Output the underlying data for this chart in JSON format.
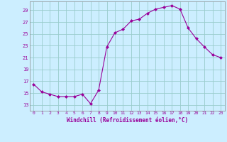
{
  "x": [
    0,
    1,
    2,
    3,
    4,
    5,
    6,
    7,
    8,
    9,
    10,
    11,
    12,
    13,
    14,
    15,
    16,
    17,
    18,
    19,
    20,
    21,
    22,
    23
  ],
  "y": [
    16.5,
    15.2,
    14.8,
    14.4,
    14.4,
    14.4,
    14.8,
    13.2,
    15.5,
    22.8,
    25.2,
    25.8,
    27.2,
    27.5,
    28.5,
    29.2,
    29.5,
    29.8,
    29.2,
    26.0,
    24.2,
    22.8,
    21.5,
    21.0
  ],
  "line_color": "#990099",
  "marker": "D",
  "marker_size": 2.5,
  "xlabel": "Windchill (Refroidissement éolien,°C)",
  "ylabel_ticks": [
    13,
    15,
    17,
    19,
    21,
    23,
    25,
    27,
    29
  ],
  "xlim": [
    -0.5,
    23.5
  ],
  "ylim": [
    12.0,
    30.5
  ],
  "background_color": "#cceeff",
  "grid_color": "#99cccc",
  "tick_color": "#990099",
  "label_color": "#990099",
  "font_family": "monospace",
  "spine_color": "#888888"
}
